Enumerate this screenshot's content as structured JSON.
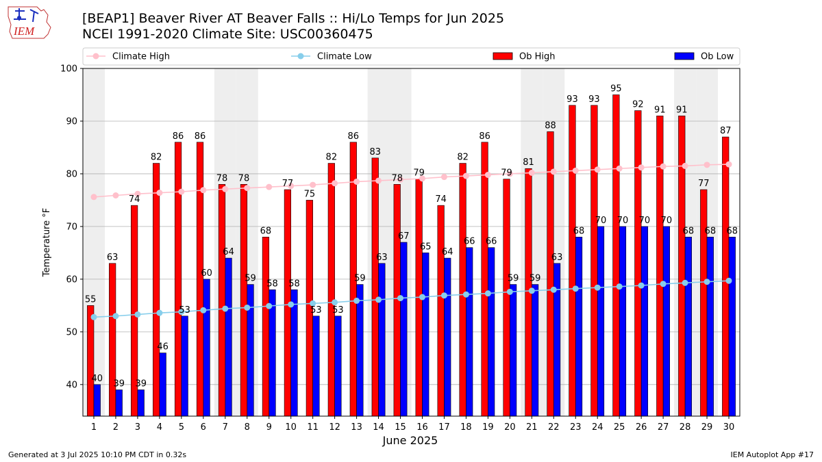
{
  "title_line1": "[BEAP1] Beaver River  AT Beaver Falls :: Hi/Lo Temps for Jun 2025",
  "title_line2": "NCEI 1991-2020 Climate Site: USC00360475",
  "logo_text": "IEM",
  "footer_left": "Generated at 3 Jul 2025 10:10 PM CDT in 0.32s",
  "footer_right": "IEM Autoplot App #17",
  "colors": {
    "ob_high": "#ff0000",
    "ob_low": "#0000ff",
    "climate_high": "#ffc0cb",
    "climate_low": "#87ceeb",
    "weekend_shade": "#eeeeee",
    "grid": "#b0b0b0"
  },
  "chart_data": {
    "type": "bar",
    "xlabel": "June 2025",
    "ylabel": "Temperature °F",
    "ylim": [
      34,
      100
    ],
    "yticks": [
      40,
      50,
      60,
      70,
      80,
      90,
      100
    ],
    "grid": "horizontal",
    "legend_placement": "top",
    "categories": [
      "1",
      "2",
      "3",
      "4",
      "5",
      "6",
      "7",
      "8",
      "9",
      "10",
      "11",
      "12",
      "13",
      "14",
      "15",
      "16",
      "17",
      "18",
      "19",
      "20",
      "21",
      "22",
      "23",
      "24",
      "25",
      "26",
      "27",
      "28",
      "29",
      "30"
    ],
    "shaded_days": [
      1,
      7,
      8,
      14,
      15,
      21,
      22,
      28,
      29
    ],
    "series": [
      {
        "name": "Ob High",
        "kind": "bar",
        "values": [
          55,
          63,
          74,
          82,
          86,
          86,
          78,
          78,
          68,
          77,
          75,
          82,
          86,
          83,
          78,
          79,
          74,
          82,
          86,
          79,
          81,
          88,
          93,
          93,
          95,
          92,
          91,
          91,
          77,
          87
        ]
      },
      {
        "name": "Ob Low",
        "kind": "bar",
        "values": [
          40,
          39,
          39,
          46,
          53,
          60,
          64,
          59,
          58,
          58,
          53,
          53,
          59,
          63,
          67,
          65,
          64,
          66,
          66,
          59,
          59,
          63,
          68,
          70,
          70,
          70,
          70,
          68,
          68,
          68
        ]
      },
      {
        "name": "Climate High",
        "kind": "line",
        "values": [
          75.6,
          75.9,
          76.2,
          76.4,
          76.6,
          76.9,
          77.1,
          77.3,
          77.5,
          77.7,
          77.9,
          78.2,
          78.5,
          78.7,
          78.9,
          79.1,
          79.4,
          79.6,
          79.8,
          80.0,
          80.2,
          80.4,
          80.6,
          80.8,
          81.0,
          81.2,
          81.4,
          81.5,
          81.7,
          81.8
        ]
      },
      {
        "name": "Climate Low",
        "kind": "line",
        "values": [
          52.8,
          53.0,
          53.3,
          53.6,
          53.8,
          54.1,
          54.4,
          54.6,
          54.9,
          55.2,
          55.4,
          55.6,
          55.9,
          56.1,
          56.4,
          56.6,
          56.9,
          57.1,
          57.3,
          57.6,
          57.8,
          58.0,
          58.2,
          58.4,
          58.6,
          58.8,
          59.1,
          59.3,
          59.5,
          59.7
        ]
      }
    ]
  }
}
